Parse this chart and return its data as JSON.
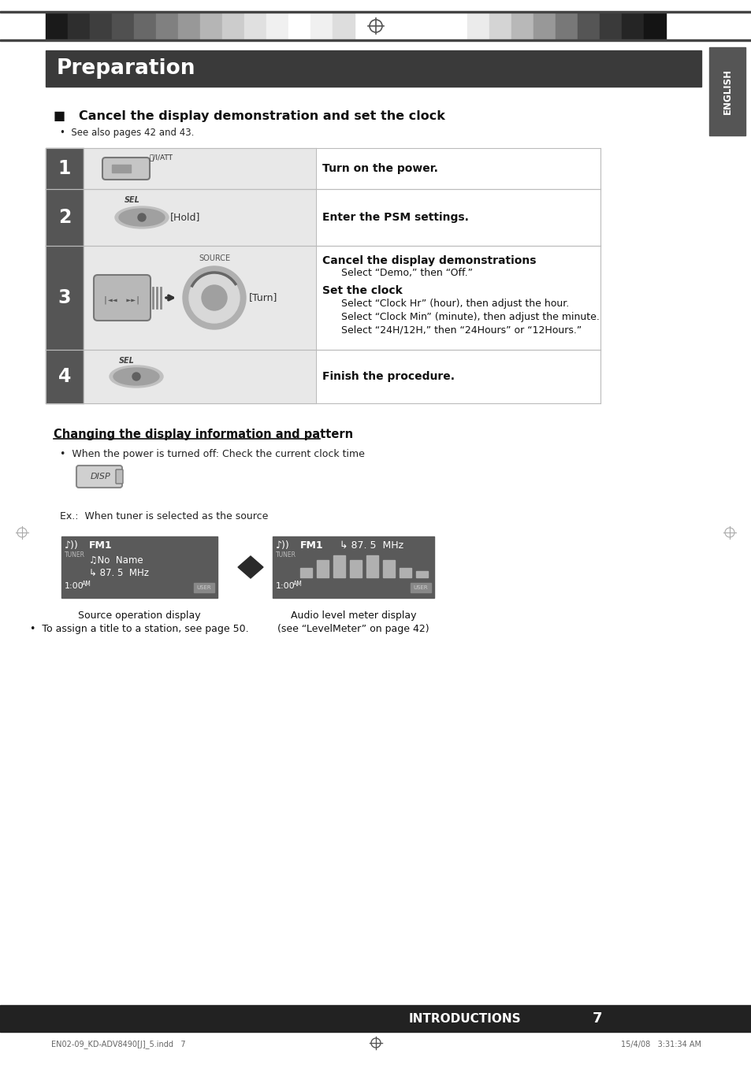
{
  "page_bg": "#ffffff",
  "header_bar_color": "#3a3a3a",
  "header_text": "Preparation",
  "header_text_color": "#ffffff",
  "section_title": "■   Cancel the display demonstration and set the clock",
  "see_also": "•  See also pages 42 and 43.",
  "table_row_num_bg": "#555555",
  "table_cell_bg": "#e8e8e8",
  "table_border_color": "#bbbbbb",
  "table_rows": [
    {
      "num": "1",
      "instr_bold": "Turn on the power."
    },
    {
      "num": "2",
      "instr_bold": "Enter the PSM settings."
    },
    {
      "num": "3",
      "instr_bold": ""
    },
    {
      "num": "4",
      "instr_bold": "Finish the procedure."
    }
  ],
  "row3_line1_bold": "Cancel the display demonstrations",
  "row3_line2": "    Select “Demo,” then “Off.”",
  "row3_line3_bold": "Set the clock",
  "row3_line4": "    Select “Clock Hr” (hour), then adjust the hour.",
  "row3_line5": "    Select “Clock Min” (minute), then adjust the minute.",
  "row3_line6": "    Select “24H/12H,” then “24Hours” or “12Hours.”",
  "section2_title": "Changing the display information and pattern",
  "section2_bullet": "•  When the power is turned off: Check the current clock time",
  "ex_label": "Ex.:  When tuner is selected as the source",
  "display1_caption": "Source operation display",
  "display1_bullet": "•  To assign a title to a station, see page 50.",
  "display2_line1": "Audio level meter display",
  "display2_line2": "(see “LevelMeter” on page 42)",
  "footer_label": "INTRODUCTIONS",
  "footer_page": "7",
  "footer_note_left": "EN02-09_KD-ADV8490[J]_5.indd   7",
  "footer_note_right": "15/4/08   3:31:34 AM",
  "english_tab_color": "#555555",
  "english_tab_text": "ENGLISH",
  "top_grad_colors_left": [
    "#1a1a1a",
    "#2e2e2e",
    "#3e3e3e",
    "#505050",
    "#686868",
    "#808080",
    "#989898",
    "#b5b5b5",
    "#cccccc",
    "#e0e0e0",
    "#f0f0f0",
    "#ffffff",
    "#f0f0f0",
    "#dddddd"
  ],
  "top_grad_colors_right": [
    "#ffffff",
    "#ebebeb",
    "#d4d4d4",
    "#b8b8b8",
    "#989898",
    "#787878",
    "#555555",
    "#3a3a3a",
    "#252525",
    "#141414"
  ]
}
